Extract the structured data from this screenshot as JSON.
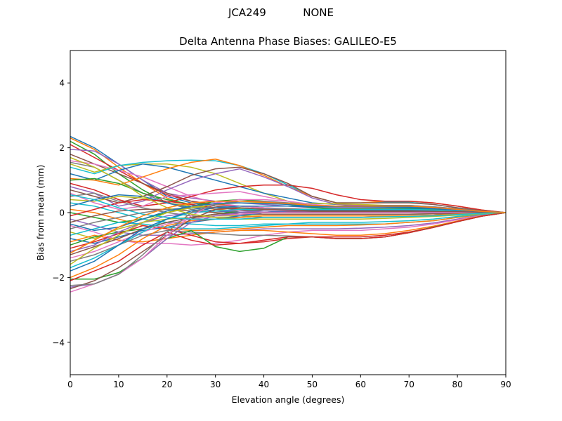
{
  "suptitle": "JCA249           NONE",
  "chart_data": {
    "type": "line",
    "title": "Delta Antenna Phase Biases: GALILEO-E5",
    "xlabel": "Elevation angle (degrees)",
    "ylabel": "Bias from mean (mm)",
    "xlim": [
      0,
      90
    ],
    "ylim": [
      -5,
      5
    ],
    "xticks": [
      0,
      10,
      20,
      30,
      40,
      50,
      60,
      70,
      80,
      90
    ],
    "yticks": [
      -4,
      -2,
      0,
      2,
      4
    ],
    "ytick_labels": [
      "−4",
      "−2",
      "0",
      "2",
      "4"
    ],
    "grid": false,
    "x": [
      0,
      5,
      10,
      15,
      20,
      25,
      30,
      35,
      40,
      45,
      50,
      55,
      60,
      65,
      70,
      75,
      80,
      85,
      90
    ],
    "colors": [
      "#1f77b4",
      "#ff7f0e",
      "#2ca02c",
      "#d62728",
      "#9467bd",
      "#8c564b",
      "#e377c2",
      "#7f7f7f",
      "#bcbd22",
      "#17becf"
    ],
    "series": [
      {
        "values": [
          2.35,
          2.0,
          1.5,
          1.0,
          0.5,
          0.3,
          0.2,
          0.15,
          0.1,
          0.1,
          0.1,
          0.1,
          0.1,
          0.1,
          0.1,
          0.08,
          0.05,
          0.02,
          0
        ]
      },
      {
        "values": [
          2.3,
          1.95,
          1.4,
          0.9,
          0.45,
          0.2,
          0.1,
          0.05,
          0.05,
          0.05,
          0.05,
          0.05,
          0.05,
          0.05,
          0.05,
          0.04,
          0.03,
          0.01,
          0
        ]
      },
      {
        "values": [
          2.2,
          1.8,
          1.2,
          0.7,
          0.3,
          0.1,
          0.0,
          -0.05,
          -0.05,
          -0.05,
          -0.05,
          -0.05,
          -0.05,
          -0.05,
          -0.05,
          -0.04,
          -0.03,
          -0.01,
          0
        ]
      },
      {
        "values": [
          2.1,
          1.7,
          1.3,
          0.9,
          0.55,
          0.35,
          0.25,
          0.2,
          0.15,
          0.12,
          0.1,
          0.1,
          0.1,
          0.1,
          0.1,
          0.08,
          0.05,
          0.02,
          0
        ]
      },
      {
        "values": [
          1.95,
          1.9,
          1.5,
          1.0,
          0.6,
          0.45,
          0.35,
          0.3,
          0.25,
          0.2,
          0.15,
          0.15,
          0.15,
          0.15,
          0.15,
          0.12,
          0.08,
          0.03,
          0
        ]
      },
      {
        "values": [
          1.8,
          1.5,
          1.2,
          0.9,
          0.6,
          0.35,
          0.2,
          0.1,
          0.05,
          0.03,
          0.02,
          0.02,
          0.02,
          0.02,
          0.02,
          0.02,
          0.01,
          0.0,
          0
        ]
      },
      {
        "values": [
          1.6,
          1.5,
          1.3,
          1.1,
          0.8,
          0.5,
          0.3,
          0.2,
          0.15,
          0.1,
          0.1,
          0.1,
          0.1,
          0.1,
          0.1,
          0.08,
          0.05,
          0.02,
          0
        ]
      },
      {
        "values": [
          1.55,
          1.4,
          1.0,
          0.6,
          0.3,
          0.1,
          0.0,
          -0.1,
          -0.15,
          -0.15,
          -0.15,
          -0.15,
          -0.15,
          -0.12,
          -0.1,
          -0.08,
          -0.05,
          -0.02,
          0
        ]
      },
      {
        "values": [
          1.5,
          1.25,
          1.45,
          1.5,
          1.5,
          1.4,
          1.2,
          0.9,
          0.6,
          0.35,
          0.2,
          0.15,
          0.1,
          0.1,
          0.1,
          0.08,
          0.05,
          0.02,
          0
        ]
      },
      {
        "values": [
          1.4,
          1.2,
          1.45,
          1.55,
          1.6,
          1.62,
          1.6,
          1.45,
          1.2,
          0.85,
          0.5,
          0.3,
          0.3,
          0.32,
          0.32,
          0.25,
          0.15,
          0.06,
          0
        ]
      },
      {
        "values": [
          1.2,
          1.0,
          1.3,
          1.5,
          1.4,
          1.2,
          1.0,
          0.8,
          0.6,
          0.45,
          0.3,
          0.25,
          0.2,
          0.2,
          0.2,
          0.15,
          0.1,
          0.04,
          0
        ]
      },
      {
        "values": [
          1.05,
          1.0,
          0.85,
          1.1,
          1.35,
          1.55,
          1.65,
          1.45,
          1.15,
          0.8,
          0.5,
          0.3,
          0.3,
          0.35,
          0.35,
          0.3,
          0.2,
          0.08,
          0
        ]
      },
      {
        "values": [
          1.0,
          1.05,
          0.9,
          0.6,
          0.4,
          0.25,
          0.15,
          0.1,
          0.05,
          0.05,
          0.05,
          0.05,
          0.05,
          0.05,
          0.05,
          0.04,
          0.03,
          0.01,
          0
        ]
      },
      {
        "values": [
          0.9,
          0.7,
          0.4,
          0.2,
          0.3,
          0.5,
          0.7,
          0.8,
          0.85,
          0.85,
          0.75,
          0.55,
          0.4,
          0.35,
          0.35,
          0.3,
          0.2,
          0.08,
          0
        ]
      },
      {
        "values": [
          0.8,
          0.6,
          0.2,
          0.35,
          0.7,
          1.0,
          1.2,
          1.35,
          1.1,
          0.8,
          0.45,
          0.25,
          0.22,
          0.22,
          0.22,
          0.18,
          0.12,
          0.05,
          0
        ]
      },
      {
        "values": [
          0.7,
          0.5,
          0.3,
          0.5,
          0.8,
          1.15,
          1.35,
          1.4,
          1.2,
          0.9,
          0.5,
          0.3,
          0.3,
          0.3,
          0.3,
          0.25,
          0.15,
          0.06,
          0
        ]
      },
      {
        "values": [
          0.6,
          0.3,
          0.1,
          0.2,
          0.5,
          0.55,
          0.6,
          0.65,
          0.5,
          0.35,
          0.2,
          0.15,
          0.15,
          0.15,
          0.15,
          0.12,
          0.08,
          0.03,
          0
        ]
      },
      {
        "values": [
          0.5,
          0.6,
          0.35,
          0.15,
          0.0,
          -0.1,
          -0.15,
          -0.15,
          -0.1,
          -0.1,
          -0.1,
          -0.1,
          -0.1,
          -0.1,
          -0.1,
          -0.08,
          -0.05,
          -0.02,
          0
        ]
      },
      {
        "values": [
          0.4,
          0.35,
          0.5,
          0.45,
          0.3,
          0.2,
          0.15,
          0.12,
          0.1,
          0.08,
          0.07,
          0.07,
          0.07,
          0.07,
          0.07,
          0.05,
          0.04,
          0.01,
          0
        ]
      },
      {
        "values": [
          0.3,
          0.2,
          0.0,
          -0.2,
          -0.3,
          -0.35,
          -0.4,
          -0.4,
          -0.35,
          -0.35,
          -0.35,
          -0.35,
          -0.35,
          -0.35,
          -0.3,
          -0.25,
          -0.15,
          -0.06,
          0
        ]
      },
      {
        "values": [
          0.2,
          0.4,
          0.55,
          0.5,
          0.3,
          0.15,
          0.05,
          0.0,
          0.0,
          0.0,
          0.0,
          0.0,
          0.0,
          0.0,
          0.0,
          0.0,
          0.0,
          0.0,
          0
        ]
      },
      {
        "values": [
          0.1,
          0.0,
          -0.2,
          -0.4,
          -0.5,
          -0.55,
          -0.55,
          -0.5,
          -0.45,
          -0.4,
          -0.4,
          -0.4,
          -0.38,
          -0.35,
          -0.3,
          -0.25,
          -0.15,
          -0.06,
          0
        ]
      },
      {
        "values": [
          0.0,
          -0.15,
          -0.3,
          -0.2,
          0.0,
          0.2,
          0.35,
          0.4,
          0.35,
          0.25,
          0.15,
          0.12,
          0.12,
          0.12,
          0.12,
          0.1,
          0.07,
          0.03,
          0
        ]
      },
      {
        "values": [
          -0.1,
          0.1,
          0.3,
          0.4,
          0.35,
          0.25,
          0.15,
          0.1,
          0.05,
          0.05,
          0.05,
          0.05,
          0.05,
          0.05,
          0.05,
          0.04,
          0.03,
          0.01,
          0
        ]
      },
      {
        "values": [
          -0.2,
          -0.4,
          -0.6,
          -0.7,
          -0.7,
          -0.65,
          -0.6,
          -0.55,
          -0.5,
          -0.5,
          -0.5,
          -0.5,
          -0.48,
          -0.45,
          -0.4,
          -0.32,
          -0.2,
          -0.08,
          0
        ]
      },
      {
        "values": [
          -0.3,
          -0.1,
          0.05,
          0.1,
          0.1,
          0.05,
          0.0,
          -0.05,
          -0.05,
          -0.05,
          -0.05,
          -0.05,
          -0.05,
          -0.05,
          -0.05,
          -0.04,
          -0.03,
          -0.01,
          0
        ]
      },
      {
        "values": [
          -0.4,
          -0.6,
          -0.85,
          -0.95,
          -0.95,
          -1.0,
          -0.95,
          -0.85,
          -0.7,
          -0.6,
          -0.55,
          -0.55,
          -0.55,
          -0.5,
          -0.45,
          -0.35,
          -0.22,
          -0.09,
          0
        ]
      },
      {
        "values": [
          -0.5,
          -0.3,
          -0.15,
          0.0,
          0.1,
          0.15,
          0.15,
          0.15,
          0.12,
          0.1,
          0.08,
          0.08,
          0.08,
          0.08,
          0.08,
          0.06,
          0.04,
          0.02,
          0
        ]
      },
      {
        "values": [
          -0.6,
          -0.8,
          -0.5,
          -0.3,
          -0.2,
          -0.15,
          -0.1,
          -0.1,
          -0.1,
          -0.1,
          -0.1,
          -0.1,
          -0.1,
          -0.1,
          -0.1,
          -0.08,
          -0.05,
          -0.02,
          0
        ]
      },
      {
        "values": [
          -0.7,
          -0.5,
          -0.3,
          -0.35,
          -0.45,
          -0.5,
          -0.5,
          -0.45,
          -0.4,
          -0.35,
          -0.3,
          -0.3,
          -0.3,
          -0.28,
          -0.25,
          -0.2,
          -0.12,
          -0.05,
          0
        ]
      },
      {
        "values": [
          -0.8,
          -0.95,
          -0.75,
          -0.55,
          -0.45,
          -0.3,
          -0.2,
          -0.1,
          0.0,
          0.05,
          0.08,
          0.08,
          0.08,
          0.08,
          0.08,
          0.06,
          0.04,
          0.02,
          0
        ]
      },
      {
        "values": [
          -0.9,
          -0.7,
          -0.85,
          -0.9,
          -0.8,
          -0.7,
          -0.6,
          -0.55,
          -0.55,
          -0.6,
          -0.65,
          -0.7,
          -0.7,
          -0.65,
          -0.55,
          -0.42,
          -0.26,
          -0.1,
          0
        ]
      },
      {
        "values": [
          -1.0,
          -0.75,
          -0.6,
          -0.5,
          -0.3,
          -0.15,
          -0.05,
          0.05,
          0.1,
          0.1,
          0.1,
          0.1,
          0.1,
          0.1,
          0.1,
          0.08,
          0.05,
          0.02,
          0
        ]
      },
      {
        "values": [
          -1.1,
          -0.9,
          -0.65,
          -0.4,
          -0.5,
          -0.7,
          -0.9,
          -0.95,
          -0.9,
          -0.8,
          -0.75,
          -0.75,
          -0.75,
          -0.7,
          -0.6,
          -0.45,
          -0.28,
          -0.11,
          0
        ]
      },
      {
        "values": [
          -1.2,
          -1.0,
          -0.6,
          -0.3,
          -0.1,
          0.0,
          0.05,
          0.05,
          0.05,
          0.05,
          0.05,
          0.05,
          0.05,
          0.05,
          0.05,
          0.04,
          0.03,
          0.01,
          0
        ]
      },
      {
        "values": [
          -1.3,
          -1.05,
          -0.8,
          -0.5,
          -0.3,
          -0.15,
          -0.05,
          0.0,
          0.0,
          0.0,
          0.0,
          0.0,
          0.0,
          0.0,
          0.0,
          0.0,
          0.0,
          0.0,
          0
        ]
      },
      {
        "values": [
          -1.4,
          -1.2,
          -0.9,
          -0.6,
          -0.35,
          -0.2,
          -0.1,
          -0.05,
          0.0,
          0.0,
          0.0,
          0.0,
          0.0,
          0.0,
          0.0,
          0.0,
          0.0,
          0.0,
          0
        ]
      },
      {
        "values": [
          -1.5,
          -1.3,
          -1.0,
          -0.7,
          -0.55,
          -0.6,
          -0.65,
          -0.7,
          -0.7,
          -0.72,
          -0.75,
          -0.8,
          -0.8,
          -0.75,
          -0.62,
          -0.46,
          -0.28,
          -0.11,
          0
        ]
      },
      {
        "values": [
          -1.6,
          -1.1,
          -0.7,
          -0.3,
          0.0,
          0.15,
          0.25,
          0.3,
          0.3,
          0.3,
          0.28,
          0.27,
          0.25,
          0.22,
          0.2,
          0.16,
          0.1,
          0.04,
          0
        ]
      },
      {
        "values": [
          -1.7,
          -1.4,
          -1.0,
          -0.6,
          -0.2,
          0.0,
          0.05,
          0.1,
          0.1,
          0.1,
          0.1,
          0.1,
          0.1,
          0.1,
          0.1,
          0.08,
          0.05,
          0.02,
          0
        ]
      },
      {
        "values": [
          -1.8,
          -1.5,
          -1.0,
          -0.5,
          -0.2,
          0.05,
          0.15,
          0.2,
          0.2,
          0.2,
          0.18,
          0.18,
          0.18,
          0.17,
          0.15,
          0.12,
          0.08,
          0.03,
          0
        ]
      },
      {
        "values": [
          -2.0,
          -1.7,
          -1.3,
          -0.8,
          -0.4,
          -0.25,
          -0.2,
          -0.15,
          -0.1,
          -0.1,
          -0.1,
          -0.1,
          -0.1,
          -0.1,
          -0.1,
          -0.08,
          -0.05,
          -0.02,
          0
        ]
      },
      {
        "values": [
          -2.05,
          -2.05,
          -1.85,
          -1.4,
          -0.8,
          -0.55,
          -1.05,
          -1.2,
          -1.1,
          -0.75,
          -0.75,
          -0.8,
          -0.8,
          -0.75,
          -0.62,
          -0.45,
          -0.28,
          -0.11,
          0
        ]
      },
      {
        "values": [
          -2.1,
          -1.8,
          -1.5,
          -1.0,
          -0.6,
          -0.85,
          -1.0,
          -0.95,
          -0.85,
          -0.75,
          -0.75,
          -0.8,
          -0.8,
          -0.75,
          -0.62,
          -0.46,
          -0.28,
          -0.11,
          0
        ]
      },
      {
        "values": [
          -2.3,
          -2.2,
          -1.9,
          -1.4,
          -0.8,
          -0.3,
          -0.1,
          0.0,
          0.05,
          0.05,
          0.05,
          0.05,
          0.05,
          0.05,
          0.05,
          0.04,
          0.03,
          0.01,
          0
        ]
      },
      {
        "values": [
          -2.35,
          -2.1,
          -1.7,
          -1.2,
          -0.7,
          -0.2,
          0.1,
          0.15,
          0.1,
          0.08,
          0.05,
          0.05,
          0.05,
          0.05,
          0.05,
          0.04,
          0.03,
          0.01,
          0
        ]
      },
      {
        "values": [
          -2.45,
          -2.2,
          -1.9,
          -1.4,
          -0.7,
          -0.1,
          0.3,
          0.4,
          0.4,
          0.35,
          0.25,
          0.2,
          0.2,
          0.2,
          0.2,
          0.15,
          0.1,
          0.04,
          0
        ]
      },
      {
        "values": [
          -2.25,
          -2.2,
          -1.9,
          -1.3,
          -0.6,
          0.0,
          0.25,
          0.35,
          0.35,
          0.3,
          0.22,
          0.2,
          0.2,
          0.22,
          0.22,
          0.18,
          0.12,
          0.05,
          0
        ]
      },
      {
        "values": [
          1.7,
          1.4,
          1.0,
          0.5,
          0.15,
          -0.05,
          -0.15,
          -0.2,
          -0.2,
          -0.2,
          -0.2,
          -0.2,
          -0.2,
          -0.18,
          -0.15,
          -0.12,
          -0.08,
          -0.03,
          0
        ]
      },
      {
        "values": [
          0.55,
          0.4,
          0.15,
          -0.05,
          -0.15,
          -0.2,
          -0.2,
          -0.2,
          -0.15,
          -0.15,
          -0.15,
          -0.15,
          -0.15,
          -0.13,
          -0.12,
          -0.1,
          -0.06,
          -0.02,
          0
        ]
      },
      {
        "values": [
          -0.35,
          -0.55,
          -0.45,
          -0.2,
          0.05,
          0.2,
          0.28,
          0.3,
          0.28,
          0.25,
          0.2,
          0.18,
          0.18,
          0.18,
          0.18,
          0.15,
          0.1,
          0.04,
          0
        ]
      },
      {
        "values": [
          -1.25,
          -0.85,
          -0.45,
          -0.1,
          0.15,
          0.3,
          0.35,
          0.35,
          0.32,
          0.28,
          0.22,
          0.2,
          0.2,
          0.2,
          0.2,
          0.16,
          0.1,
          0.04,
          0
        ]
      }
    ]
  }
}
